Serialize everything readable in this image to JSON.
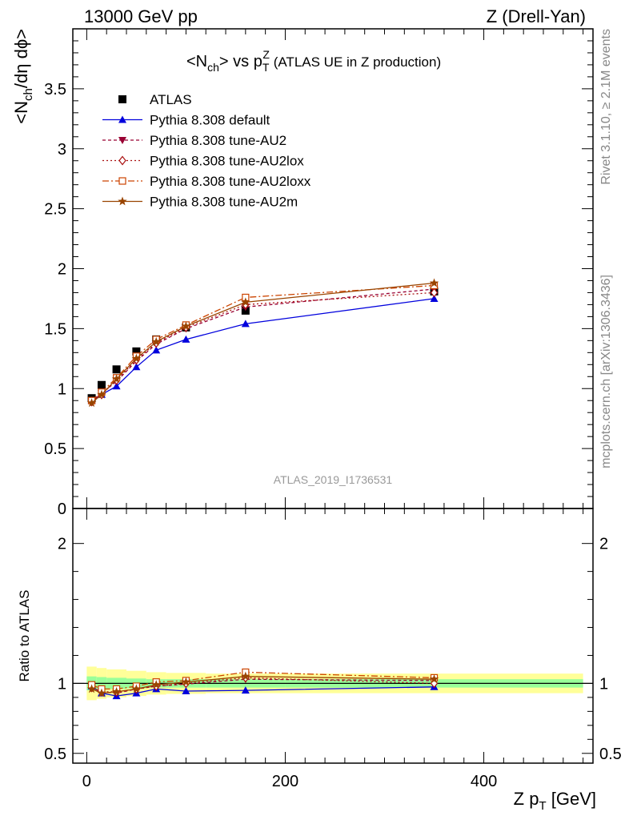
{
  "header": {
    "left": "13000 GeV pp",
    "right": "Z (Drell-Yan)"
  },
  "side": {
    "rivet": "Rivet 3.1.10, ≥ 2.1M events",
    "mcplots": "mcplots.cern.ch [arXiv:1306.3436]"
  },
  "chart_data": {
    "type": "line",
    "title": "<N_ch> vs p_T^Z (ATLAS UE in Z production)",
    "title_parts": {
      "a": "<N",
      "a_sub": "ch",
      "b": "> vs p",
      "b_sub": "T",
      "b_sup": "Z",
      "c": " (ATLAS UE in Z production)"
    },
    "watermark": "ATLAS_2019_I1736531",
    "ylabel_parts": {
      "a": "<N",
      "a_sub": "ch",
      "b": "/dη dϕ>"
    },
    "xlabel_parts": {
      "a": "Z p",
      "a_sub": "T",
      "b": " [GeV]"
    },
    "ratio_ylabel": "Ratio to ATLAS",
    "xlim": [
      -14,
      510
    ],
    "ylim": [
      0,
      4.0
    ],
    "ratio_ylim": [
      0.43,
      2.25
    ],
    "x_ticks": [
      0,
      200,
      400
    ],
    "x_tick_labels": [
      "0",
      "200",
      "400"
    ],
    "y_ticks": [
      0,
      0.5,
      1,
      1.5,
      2,
      2.5,
      3,
      3.5
    ],
    "y_tick_labels": [
      "0",
      "0.5",
      "1",
      "1.5",
      "2",
      "2.5",
      "3",
      "3.5"
    ],
    "ratio_ticks": [
      0.5,
      1,
      2
    ],
    "ratio_tick_labels": [
      "0.5",
      "1",
      "2"
    ],
    "legend_position": "top-left",
    "x": [
      5,
      15,
      30,
      50,
      70,
      100,
      160,
      350
    ],
    "band_edges": [
      0,
      10,
      20,
      40,
      60,
      80,
      120,
      200,
      500
    ],
    "data_series": {
      "name": "ATLAS",
      "values": [
        0.92,
        1.03,
        1.16,
        1.31,
        1.41,
        1.51,
        1.65,
        1.81
      ],
      "errors": [
        0.02,
        0.02,
        0.02,
        0.02,
        0.02,
        0.02,
        0.03,
        0.05
      ]
    },
    "ratio_band_inner": [
      0.05,
      0.045,
      0.04,
      0.035,
      0.03,
      0.03,
      0.03,
      0.03
    ],
    "ratio_band_outer": [
      0.12,
      0.11,
      0.1,
      0.09,
      0.08,
      0.075,
      0.07,
      0.07
    ],
    "series": [
      {
        "name": "Pythia 8.308 default",
        "color": "#0000dd",
        "dash": "",
        "marker": "triangle-up",
        "values": [
          0.9,
          0.95,
          1.02,
          1.18,
          1.32,
          1.41,
          1.54,
          1.75
        ],
        "ratio": [
          0.98,
          0.93,
          0.91,
          0.93,
          0.96,
          0.945,
          0.95,
          0.975
        ]
      },
      {
        "name": "Pythia 8.308 tune-AU2",
        "color": "#990033",
        "dash": "4,3",
        "marker": "triangle-down",
        "values": [
          0.89,
          0.96,
          1.06,
          1.23,
          1.37,
          1.5,
          1.68,
          1.83
        ],
        "ratio": [
          0.97,
          0.94,
          0.93,
          0.96,
          0.98,
          0.995,
          1.03,
          1.02
        ]
      },
      {
        "name": "Pythia 8.308 tune-AU2lox",
        "color": "#aa1111",
        "dash": "2,3",
        "marker": "diamond-open",
        "values": [
          0.89,
          0.95,
          1.07,
          1.24,
          1.38,
          1.51,
          1.7,
          1.8
        ],
        "ratio": [
          0.97,
          0.94,
          0.94,
          0.96,
          0.98,
          1.0,
          1.04,
          1.0
        ]
      },
      {
        "name": "Pythia 8.308 tune-AU2loxx",
        "color": "#cc4400",
        "dash": "8,3,2,3",
        "marker": "square-open",
        "values": [
          0.9,
          0.97,
          1.09,
          1.27,
          1.41,
          1.53,
          1.76,
          1.86
        ],
        "ratio": [
          0.99,
          0.96,
          0.96,
          0.98,
          1.01,
          1.02,
          1.08,
          1.04
        ]
      },
      {
        "name": "Pythia 8.308 tune-AU2m",
        "color": "#994400",
        "dash": "",
        "marker": "star",
        "values": [
          0.88,
          0.95,
          1.08,
          1.25,
          1.39,
          1.52,
          1.72,
          1.88
        ],
        "ratio": [
          0.96,
          0.93,
          0.94,
          0.96,
          0.99,
          1.01,
          1.05,
          1.03
        ]
      }
    ]
  }
}
